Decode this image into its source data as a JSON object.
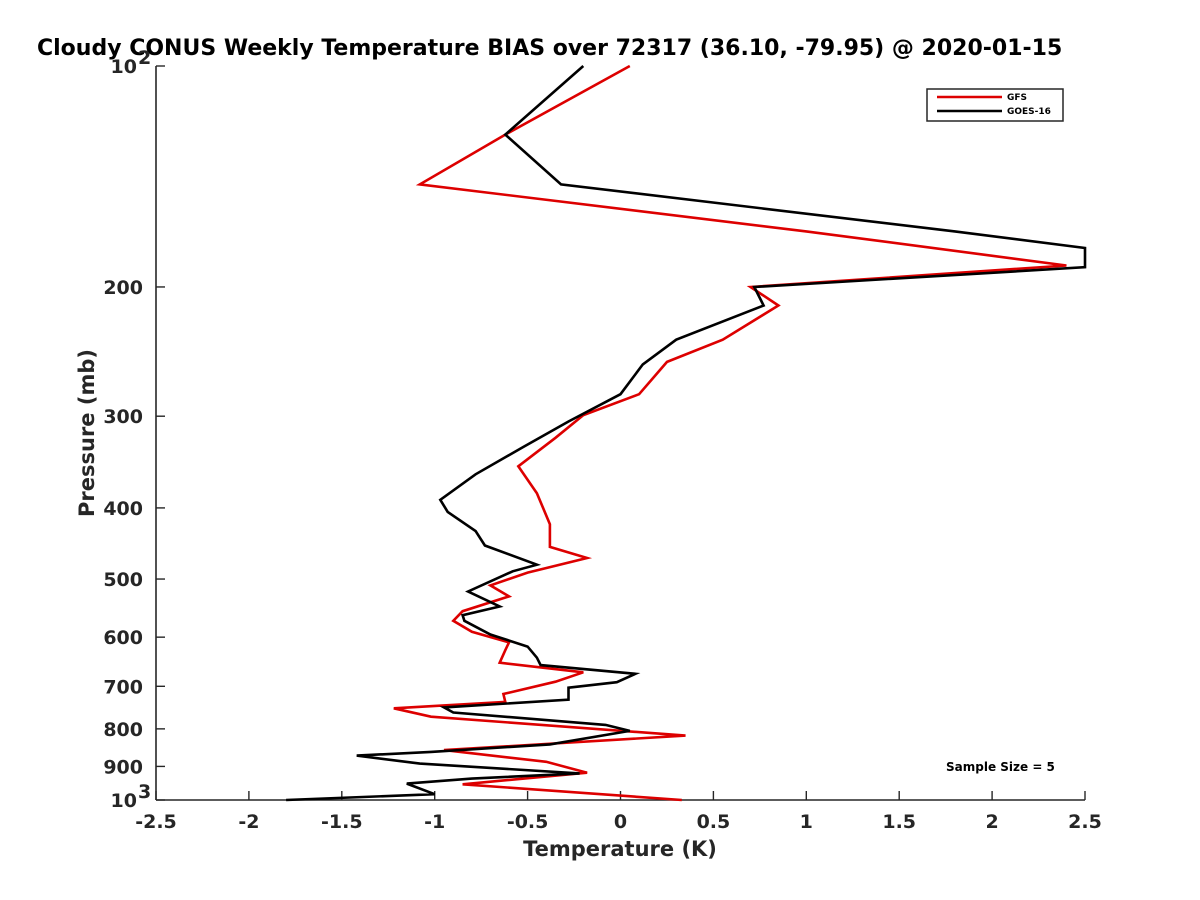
{
  "chart_data": {
    "type": "line",
    "title": "Cloudy CONUS Weekly Temperature BIAS over 72317 (36.10, -79.95) @ 2020-01-15",
    "xlabel": "Temperature (K)",
    "ylabel": "Pressure (mb)",
    "xlim": [
      -2.5,
      2.5
    ],
    "ylim": [
      1000,
      100
    ],
    "y_scale": "log",
    "y_reversed": true,
    "grid": false,
    "legend_position": "top-right",
    "x_ticks": [
      -2.5,
      -2,
      -1.5,
      -1,
      -0.5,
      0,
      0.5,
      1,
      1.5,
      2,
      2.5
    ],
    "x_tick_labels": [
      "-2.5",
      "-2",
      "-1.5",
      "-1",
      "-0.5",
      "0",
      "0.5",
      "1",
      "1.5",
      "2",
      "2.5"
    ],
    "y_ticks": [
      {
        "value": 100,
        "label": "10",
        "exp": "2"
      },
      {
        "value": 200,
        "label": "200"
      },
      {
        "value": 300,
        "label": "300"
      },
      {
        "value": 400,
        "label": "400"
      },
      {
        "value": 500,
        "label": "500"
      },
      {
        "value": 600,
        "label": "600"
      },
      {
        "value": 700,
        "label": "700"
      },
      {
        "value": 800,
        "label": "800"
      },
      {
        "value": 900,
        "label": "900"
      },
      {
        "value": 1000,
        "label": "10",
        "exp": "3"
      }
    ],
    "series": [
      {
        "name": "GFS",
        "color": "#dd0000",
        "x": [
          0.05,
          -0.62,
          -1.08,
          1.0,
          2.4,
          0.7,
          0.85,
          0.55,
          0.25,
          0.1,
          -0.2,
          -0.35,
          -0.55,
          -0.45,
          -0.38,
          -0.38,
          -0.18,
          -0.5,
          -0.7,
          -0.6,
          -0.85,
          -0.9,
          -0.8,
          -0.6,
          -0.62,
          -0.65,
          -0.2,
          -0.35,
          -0.63,
          -0.62,
          -1.22,
          -1.02,
          0.35,
          -0.95,
          -0.4,
          -0.18,
          -0.85,
          0.33
        ],
        "y": [
          100,
          124,
          145,
          168,
          187,
          200,
          212,
          236,
          253,
          280,
          299,
          321,
          351,
          382,
          421,
          452,
          468,
          490,
          510,
          528,
          553,
          570,
          590,
          610,
          625,
          650,
          670,
          690,
          717,
          735,
          750,
          770,
          817,
          855,
          887,
          918,
          952,
          1000
        ]
      },
      {
        "name": "GOES-16",
        "color": "#000000",
        "x": [
          -0.2,
          -0.62,
          -0.32,
          1.8,
          2.5,
          2.5,
          0.72,
          0.77,
          0.3,
          0.12,
          0.0,
          -0.28,
          -0.52,
          -0.78,
          -0.97,
          -0.93,
          -0.78,
          -0.73,
          -0.45,
          -0.58,
          -0.82,
          -0.65,
          -0.85,
          -0.84,
          -0.7,
          -0.5,
          -0.45,
          -0.43,
          0.08,
          -0.02,
          -0.28,
          -0.28,
          -0.95,
          -0.9,
          -0.08,
          0.05,
          -0.38,
          -1.02,
          -1.42,
          -1.08,
          -0.22,
          -0.8,
          -1.15,
          -1.0,
          -1.8
        ],
        "y": [
          100,
          124,
          145,
          168,
          177,
          188,
          200,
          212,
          236,
          255,
          280,
          305,
          330,
          360,
          390,
          405,
          430,
          450,
          478,
          488,
          520,
          545,
          560,
          570,
          595,
          618,
          640,
          655,
          673,
          691,
          703,
          730,
          748,
          760,
          790,
          805,
          840,
          860,
          870,
          892,
          920,
          935,
          950,
          982,
          1000
        ]
      }
    ],
    "annotation": "Sample Size = 5"
  }
}
